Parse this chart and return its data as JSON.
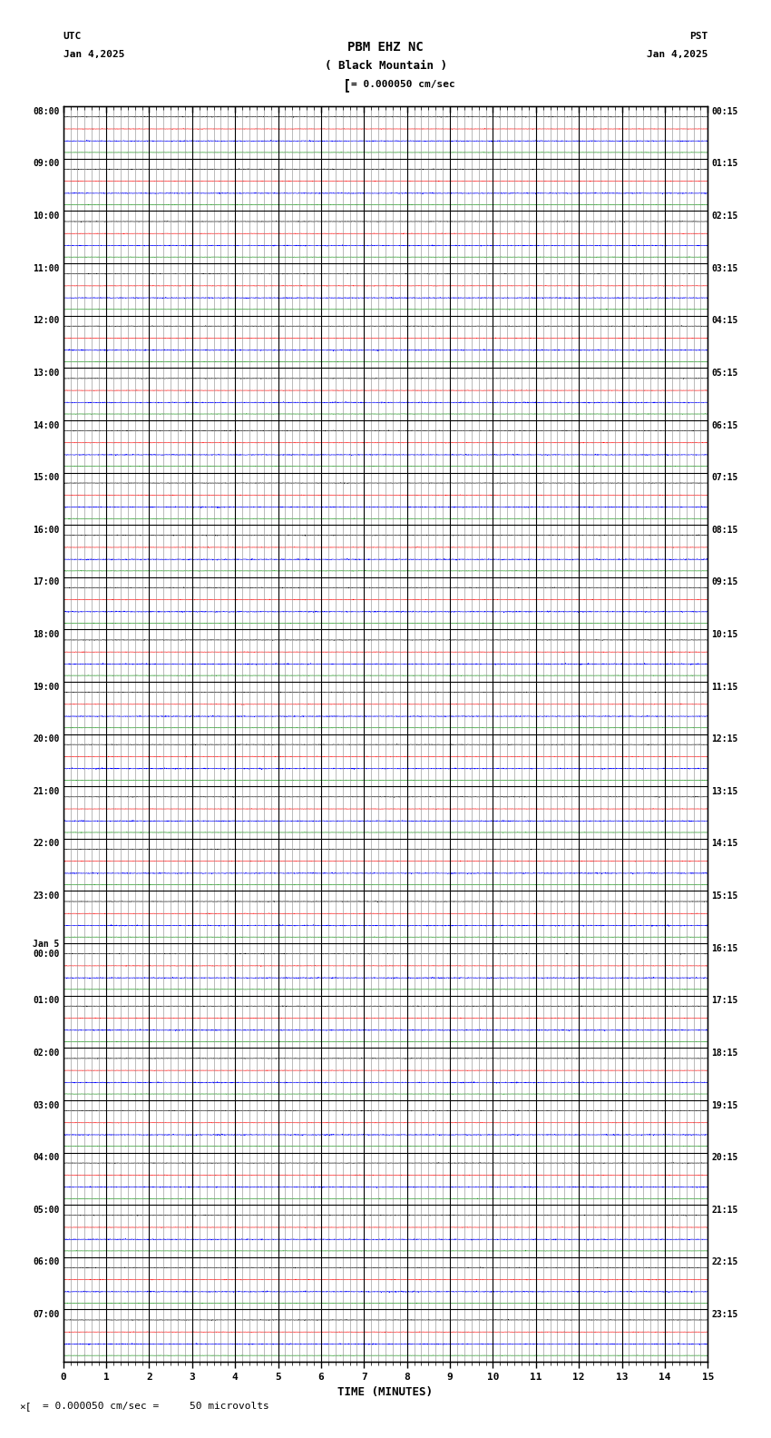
{
  "title_line1": "PBM EHZ NC",
  "title_line2": "( Black Mountain )",
  "scale_text": "= 0.000050 cm/sec",
  "utc_label": "UTC",
  "utc_date": "Jan 4,2025",
  "pst_label": "PST",
  "pst_date": "Jan 4,2025",
  "left_times_utc": [
    "08:00",
    "09:00",
    "10:00",
    "11:00",
    "12:00",
    "13:00",
    "14:00",
    "15:00",
    "16:00",
    "17:00",
    "18:00",
    "19:00",
    "20:00",
    "21:00",
    "22:00",
    "23:00",
    "Jan 5\n00:00",
    "01:00",
    "02:00",
    "03:00",
    "04:00",
    "05:00",
    "06:00",
    "07:00"
  ],
  "right_times_pst": [
    "00:15",
    "01:15",
    "02:15",
    "03:15",
    "04:15",
    "05:15",
    "06:15",
    "07:15",
    "08:15",
    "09:15",
    "10:15",
    "11:15",
    "12:15",
    "13:15",
    "14:15",
    "15:15",
    "16:15",
    "17:15",
    "18:15",
    "19:15",
    "20:15",
    "21:15",
    "22:15",
    "23:15"
  ],
  "xlabel": "TIME (MINUTES)",
  "footer_text": "= 0.000050 cm/sec =     50 microvolts",
  "n_rows": 24,
  "x_min": 0,
  "x_max": 15,
  "bg_color": "#ffffff",
  "grid_major_color": "#000000",
  "grid_minor_color": "#888888",
  "trace_colors": [
    "#000000",
    "#ff0000",
    "#0000ff",
    "#008800"
  ],
  "noise_amp": [
    0.006,
    0.005,
    0.01,
    0.004
  ],
  "n_traces_per_row": 4,
  "n_pts": 3000,
  "lw": 0.4
}
